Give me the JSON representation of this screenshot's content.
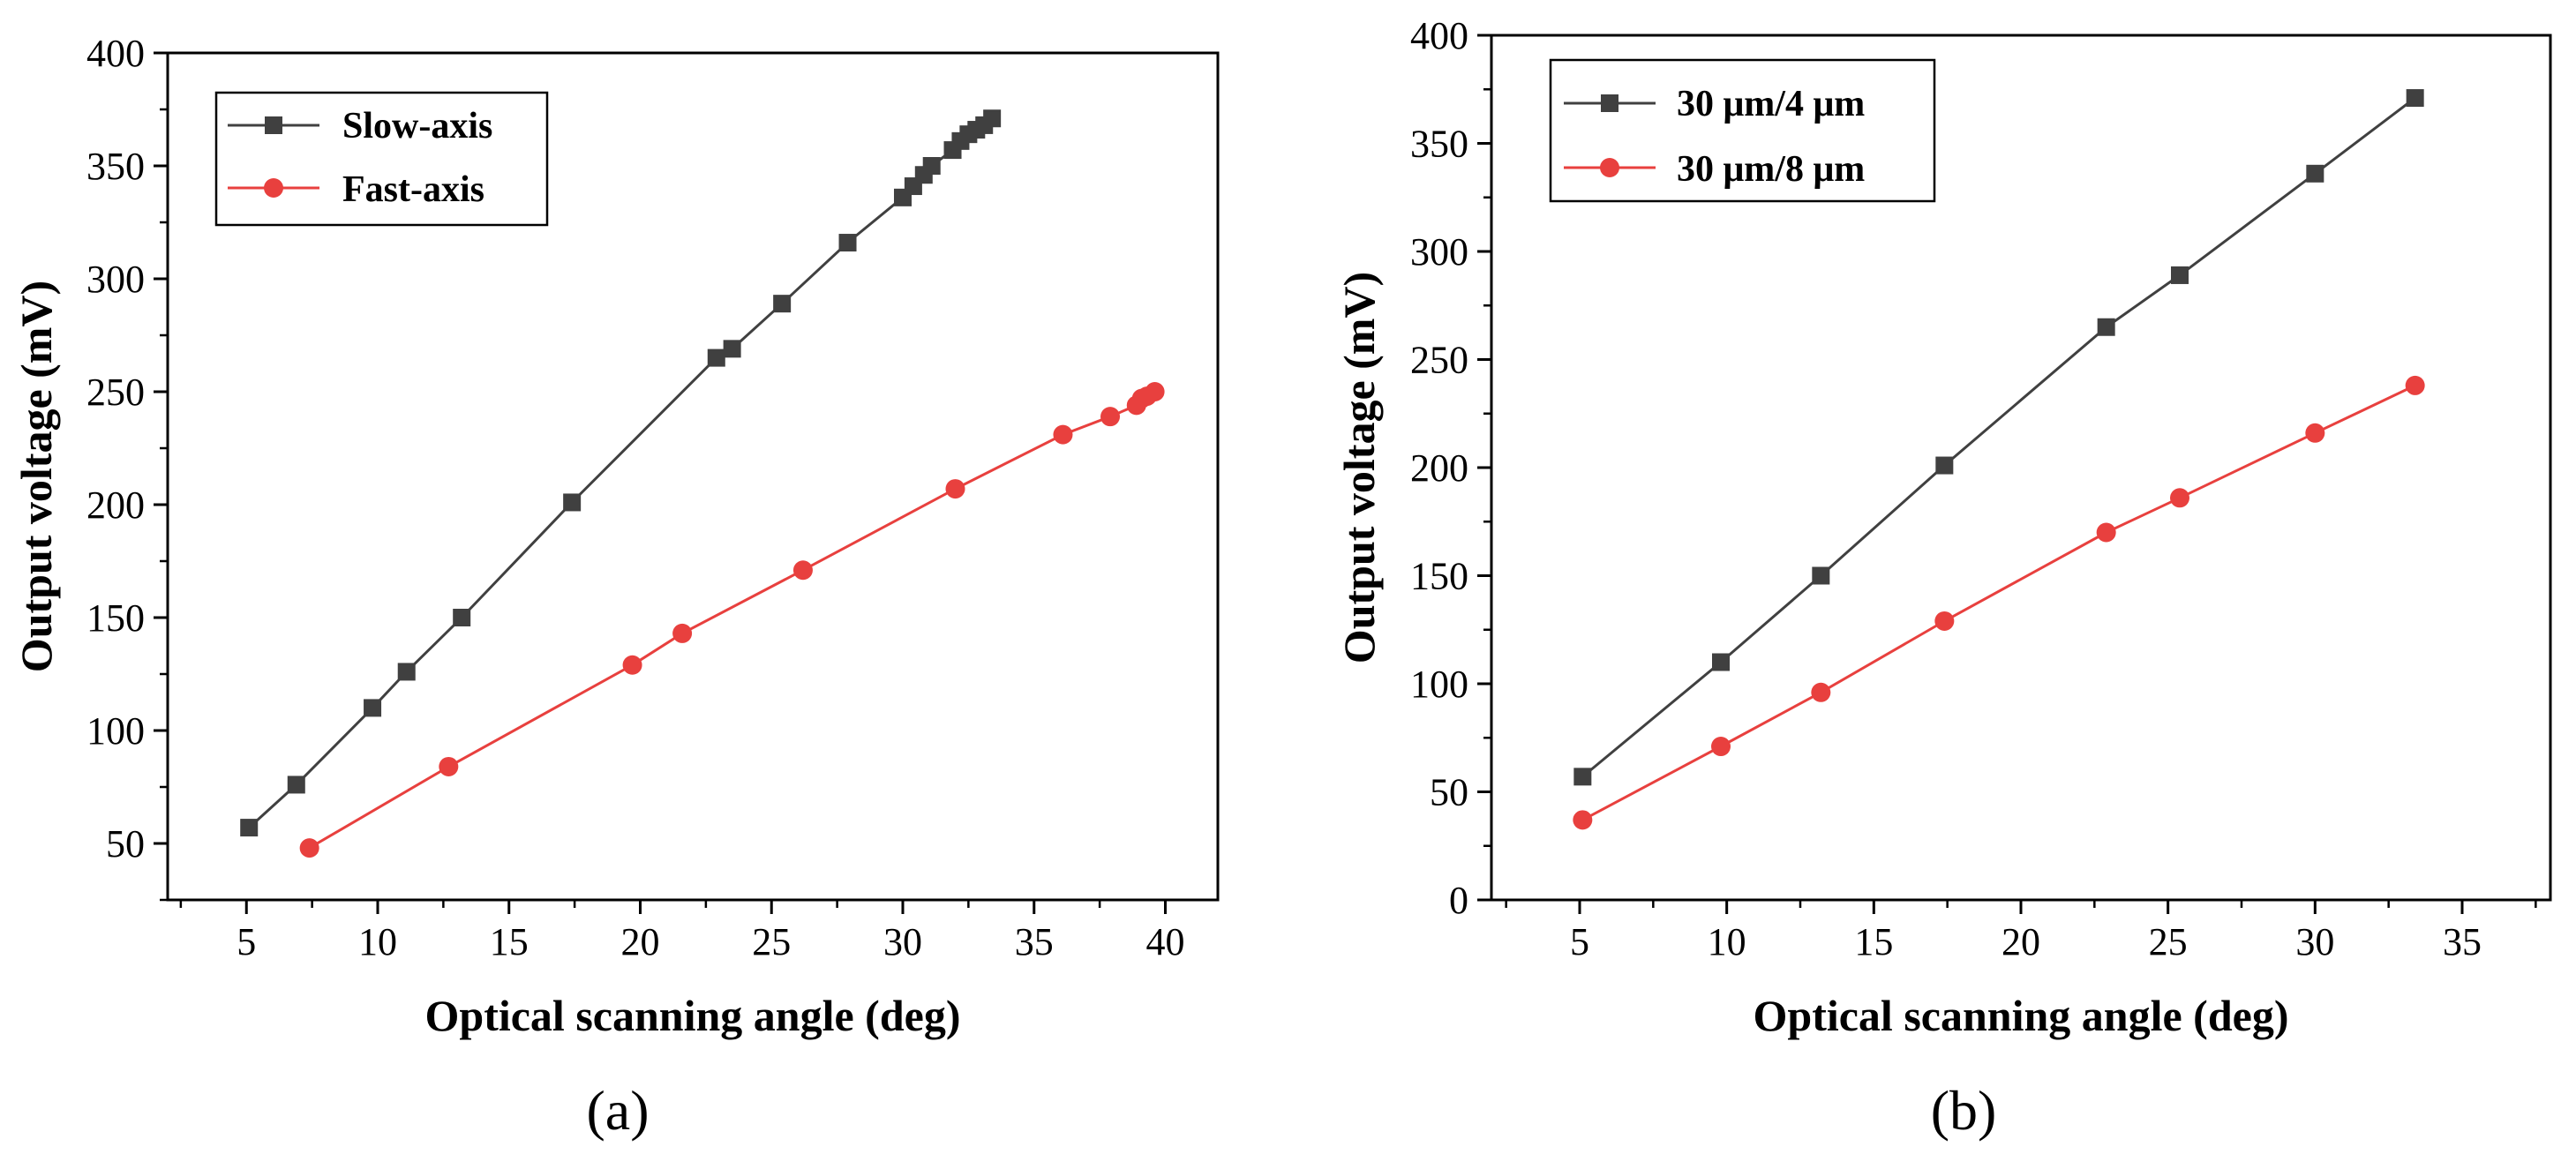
{
  "chart_data": [
    {
      "type": "line",
      "panel_label": "(a)",
      "xlabel": "Optical scanning angle (deg)",
      "ylabel": "Output voltage (mV)",
      "xlim": [
        2,
        42
      ],
      "ylim": [
        25,
        400
      ],
      "xticks": [
        5,
        10,
        15,
        20,
        25,
        30,
        35,
        40
      ],
      "yticks": [
        50,
        100,
        150,
        200,
        250,
        300,
        350,
        400
      ],
      "grid": false,
      "legend": "top-left",
      "series": [
        {
          "name": "Slow-axis",
          "color": "#404040",
          "marker": "square",
          "x": [
            5.1,
            6.9,
            9.8,
            11.1,
            13.2,
            17.4,
            22.9,
            23.5,
            25.4,
            27.9,
            30.0,
            30.4,
            30.8,
            31.1,
            31.9,
            32.2,
            32.5,
            32.8,
            33.1,
            33.4
          ],
          "y": [
            57,
            76,
            110,
            126,
            150,
            201,
            265,
            269,
            289,
            316,
            336,
            341,
            346,
            350,
            357,
            361,
            364,
            366,
            368,
            371
          ]
        },
        {
          "name": "Fast-axis",
          "color": "#e8403e",
          "marker": "circle",
          "x": [
            7.4,
            12.7,
            19.7,
            21.6,
            26.2,
            32.0,
            36.1,
            37.9,
            38.9,
            39.1,
            39.3,
            39.6
          ],
          "y": [
            48,
            84,
            129,
            143,
            171,
            207,
            231,
            239,
            244,
            247,
            248,
            250
          ]
        }
      ]
    },
    {
      "type": "line",
      "panel_label": "(b)",
      "xlabel": "Optical scanning angle (deg)",
      "ylabel": "Output voltage (mV)",
      "xlim": [
        2,
        38
      ],
      "ylim": [
        0,
        400
      ],
      "xticks": [
        5,
        10,
        15,
        20,
        25,
        30,
        35
      ],
      "yticks": [
        0,
        50,
        100,
        150,
        200,
        250,
        300,
        350,
        400
      ],
      "grid": false,
      "legend": "top-left",
      "series": [
        {
          "name": "30 μm/4 μm",
          "color": "#404040",
          "marker": "square",
          "x": [
            5.1,
            9.8,
            13.2,
            17.4,
            22.9,
            25.4,
            30.0,
            33.4
          ],
          "y": [
            57,
            110,
            150,
            201,
            265,
            289,
            336,
            371
          ]
        },
        {
          "name": "30 μm/8 μm",
          "color": "#e8403e",
          "marker": "circle",
          "x": [
            5.1,
            9.8,
            13.2,
            17.4,
            22.9,
            25.4,
            30.0,
            33.4
          ],
          "y": [
            37,
            71,
            96,
            129,
            170,
            186,
            216,
            238
          ]
        }
      ]
    }
  ]
}
